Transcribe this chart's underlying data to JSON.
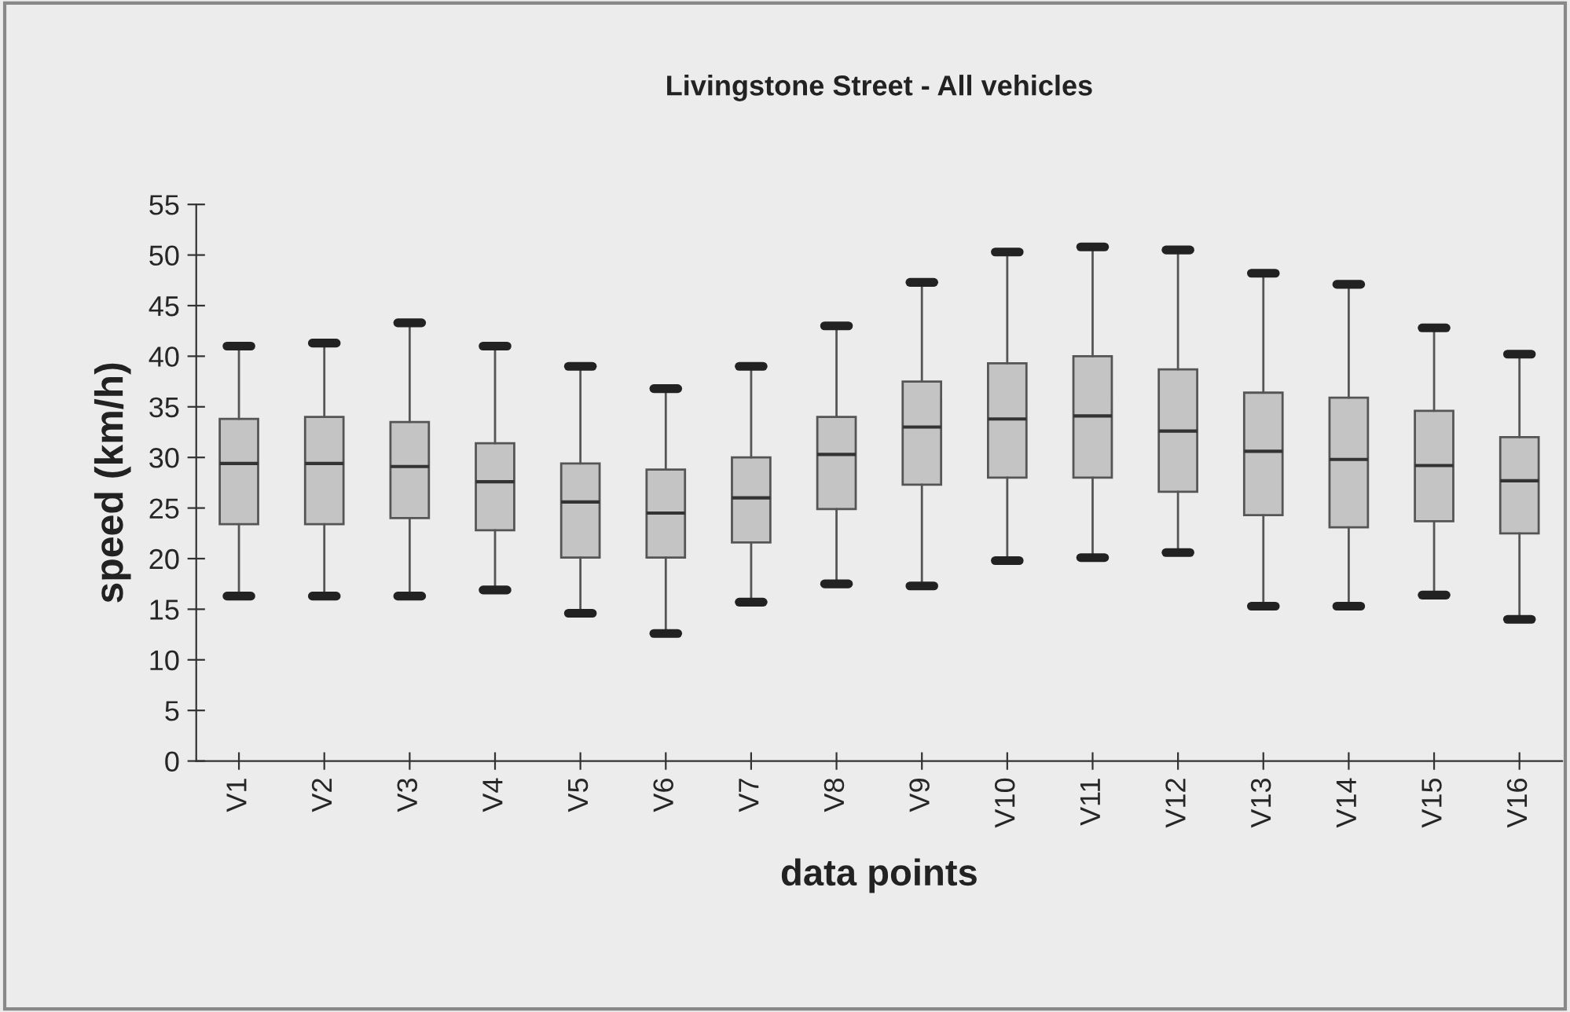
{
  "chart_data": {
    "type": "box",
    "title": "Livingstone Street - All vehicles",
    "xlabel": "data points",
    "ylabel": "speed (km/h)",
    "categories": [
      "V1",
      "V2",
      "V3",
      "V4",
      "V5",
      "V6",
      "V7",
      "V8",
      "V9",
      "V10",
      "V11",
      "V12",
      "V13",
      "V14",
      "V15",
      "V16"
    ],
    "boxes": [
      {
        "low": 16.3,
        "q1": 23.4,
        "median": 29.4,
        "q3": 33.8,
        "high": 41.0
      },
      {
        "low": 16.3,
        "q1": 23.4,
        "median": 29.4,
        "q3": 34.0,
        "high": 41.3
      },
      {
        "low": 16.3,
        "q1": 24.0,
        "median": 29.1,
        "q3": 33.5,
        "high": 43.3
      },
      {
        "low": 16.9,
        "q1": 22.8,
        "median": 27.6,
        "q3": 31.4,
        "high": 41.0
      },
      {
        "low": 14.6,
        "q1": 20.1,
        "median": 25.6,
        "q3": 29.4,
        "high": 39.0
      },
      {
        "low": 12.6,
        "q1": 20.1,
        "median": 24.5,
        "q3": 28.8,
        "high": 36.8
      },
      {
        "low": 15.7,
        "q1": 21.6,
        "median": 26.0,
        "q3": 30.0,
        "high": 39.0
      },
      {
        "low": 17.5,
        "q1": 24.9,
        "median": 30.3,
        "q3": 34.0,
        "high": 43.0
      },
      {
        "low": 17.3,
        "q1": 27.3,
        "median": 33.0,
        "q3": 37.5,
        "high": 47.3
      },
      {
        "low": 19.8,
        "q1": 28.0,
        "median": 33.8,
        "q3": 39.3,
        "high": 50.3
      },
      {
        "low": 20.1,
        "q1": 28.0,
        "median": 34.1,
        "q3": 40.0,
        "high": 50.8
      },
      {
        "low": 20.6,
        "q1": 26.6,
        "median": 32.6,
        "q3": 38.7,
        "high": 50.5
      },
      {
        "low": 15.3,
        "q1": 24.3,
        "median": 30.6,
        "q3": 36.4,
        "high": 48.2
      },
      {
        "low": 15.3,
        "q1": 23.1,
        "median": 29.8,
        "q3": 35.9,
        "high": 47.1
      },
      {
        "low": 16.4,
        "q1": 23.7,
        "median": 29.2,
        "q3": 34.6,
        "high": 42.8
      },
      {
        "low": 14.0,
        "q1": 22.5,
        "median": 27.7,
        "q3": 32.0,
        "high": 40.2
      }
    ],
    "color": "#c4c4c4",
    "ylim": [
      0,
      55
    ],
    "yticks": [
      0,
      5,
      10,
      15,
      20,
      25,
      30,
      35,
      40,
      45,
      50,
      55
    ],
    "grid": false
  }
}
